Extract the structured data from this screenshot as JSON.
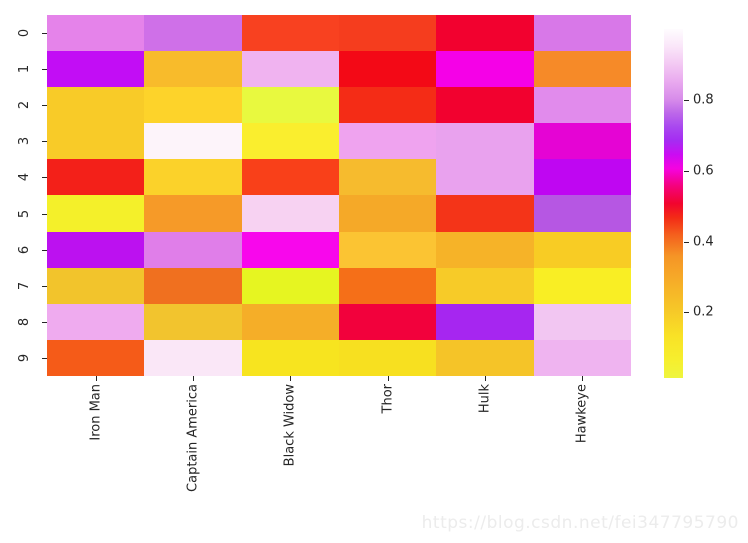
{
  "chart_data": {
    "type": "heatmap",
    "title": "",
    "xlabel": "",
    "ylabel": "",
    "legend_position": "colorbar-right",
    "grid": false,
    "columns": [
      "Iron Man",
      "Captain America",
      "Black Widow",
      "Thor",
      "Hulk",
      "Hawkeye"
    ],
    "row_labels": [
      "0",
      "1",
      "2",
      "3",
      "4",
      "5",
      "6",
      "7",
      "8",
      "9"
    ],
    "values_estimated": [
      [
        0.82,
        0.76,
        0.42,
        0.42,
        0.5,
        0.79
      ],
      [
        0.64,
        0.27,
        0.86,
        0.47,
        0.6,
        0.32
      ],
      [
        0.21,
        0.18,
        0.04,
        0.44,
        0.5,
        0.8
      ],
      [
        0.21,
        0.97,
        0.1,
        0.84,
        0.83,
        0.61
      ],
      [
        0.45,
        0.19,
        0.42,
        0.26,
        0.83,
        0.65
      ],
      [
        0.08,
        0.31,
        0.92,
        0.3,
        0.43,
        0.72
      ],
      [
        0.66,
        0.79,
        0.58,
        0.25,
        0.27,
        0.18
      ],
      [
        0.22,
        0.37,
        0.04,
        0.37,
        0.21,
        0.07
      ],
      [
        0.85,
        0.22,
        0.28,
        0.53,
        0.69,
        0.88
      ],
      [
        0.41,
        0.94,
        0.13,
        0.14,
        0.22,
        0.86
      ]
    ],
    "cell_colors": [
      [
        "#e583ea",
        "#cf70e8",
        "#f84120",
        "#f53d1e",
        "#f2012f",
        "#d878e8"
      ],
      [
        "#c20df5",
        "#f8bb2b",
        "#f0b3f0",
        "#f30916",
        "#f501e7",
        "#f68a28"
      ],
      [
        "#f8cb28",
        "#fdd32a",
        "#e8f93f",
        "#f42c16",
        "#f2012f",
        "#e18bec"
      ],
      [
        "#f8cb28",
        "#fdf4fa",
        "#faee2e",
        "#efa3ef",
        "#e9a2ee",
        "#e504d4"
      ],
      [
        "#f32019",
        "#fbd22a",
        "#f94019",
        "#f6bb2e",
        "#e9a2ee",
        "#bf06f2"
      ],
      [
        "#f4f02a",
        "#f69a28",
        "#f7d2f2",
        "#f5a928",
        "#f43418",
        "#b657e3"
      ],
      [
        "#bc11f0",
        "#e07ee9",
        "#f807ec",
        "#fbc433",
        "#f6b328",
        "#f8cc24"
      ],
      [
        "#f2c42c",
        "#f0701f",
        "#e6f521",
        "#f56f18",
        "#f7cb28",
        "#f9ee24"
      ],
      [
        "#efabef",
        "#f2c42e",
        "#f5ae28",
        "#f2013c",
        "#a626f0",
        "#f2c6f2"
      ],
      [
        "#f55b18",
        "#fae7f7",
        "#f7e41f",
        "#f7e020",
        "#f5c428",
        "#efb4f0"
      ]
    ],
    "colorbar": {
      "tick_labels": [
        "0.2",
        "0.4",
        "0.6",
        "0.8"
      ],
      "tick_values": [
        0.2,
        0.4,
        0.6,
        0.8
      ],
      "vmin": 0.015,
      "vmax": 1.0,
      "gradient_stops": [
        [
          0.0,
          "#eef53e"
        ],
        [
          0.05,
          "#f6ef2e"
        ],
        [
          0.12,
          "#f9e226"
        ],
        [
          0.2,
          "#f6c628"
        ],
        [
          0.28,
          "#f6ac28"
        ],
        [
          0.35,
          "#f59426"
        ],
        [
          0.41,
          "#f4601d"
        ],
        [
          0.46,
          "#f32b16"
        ],
        [
          0.5,
          "#f2042e"
        ],
        [
          0.55,
          "#f4027c"
        ],
        [
          0.6,
          "#f503e0"
        ],
        [
          0.64,
          "#cb0cf2"
        ],
        [
          0.68,
          "#a52cf2"
        ],
        [
          0.72,
          "#a948ef"
        ],
        [
          0.76,
          "#bd68e9"
        ],
        [
          0.8,
          "#d88dea"
        ],
        [
          0.85,
          "#e9aaef"
        ],
        [
          0.9,
          "#f3c9f3"
        ],
        [
          0.95,
          "#fae6f9"
        ],
        [
          1.0,
          "#fefcfe"
        ]
      ]
    }
  },
  "watermark": {
    "text": "https://blog.csdn.net/fei347795790"
  }
}
